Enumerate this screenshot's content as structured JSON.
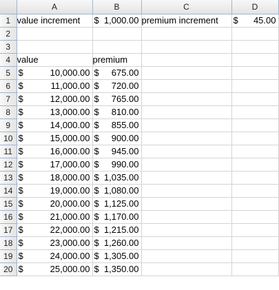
{
  "columns": [
    "A",
    "B",
    "C",
    "D"
  ],
  "header": {
    "label_a1": "value increment",
    "b1_currency": "$",
    "b1_value": "1,000.00",
    "label_c1": "premium increment",
    "d1_currency": "$",
    "d1_value": "45.00"
  },
  "table_headers": {
    "value": "value",
    "premium": "premium"
  },
  "currency_symbol": "$",
  "rows": [
    {
      "row": "1"
    },
    {
      "row": "2"
    },
    {
      "row": "3"
    },
    {
      "row": "4"
    },
    {
      "row": "5",
      "value": "10,000.00",
      "premium": "675.00"
    },
    {
      "row": "6",
      "value": "11,000.00",
      "premium": "720.00"
    },
    {
      "row": "7",
      "value": "12,000.00",
      "premium": "765.00"
    },
    {
      "row": "8",
      "value": "13,000.00",
      "premium": "810.00"
    },
    {
      "row": "9",
      "value": "14,000.00",
      "premium": "855.00"
    },
    {
      "row": "10",
      "value": "15,000.00",
      "premium": "900.00"
    },
    {
      "row": "11",
      "value": "16,000.00",
      "premium": "945.00"
    },
    {
      "row": "12",
      "value": "17,000.00",
      "premium": "990.00"
    },
    {
      "row": "13",
      "value": "18,000.00",
      "premium": "1,035.00"
    },
    {
      "row": "14",
      "value": "19,000.00",
      "premium": "1,080.00"
    },
    {
      "row": "15",
      "value": "20,000.00",
      "premium": "1,125.00"
    },
    {
      "row": "16",
      "value": "21,000.00",
      "premium": "1,170.00"
    },
    {
      "row": "17",
      "value": "22,000.00",
      "premium": "1,215.00"
    },
    {
      "row": "18",
      "value": "23,000.00",
      "premium": "1,260.00"
    },
    {
      "row": "19",
      "value": "24,000.00",
      "premium": "1,305.00"
    },
    {
      "row": "20",
      "value": "25,000.00",
      "premium": "1,350.00"
    }
  ]
}
